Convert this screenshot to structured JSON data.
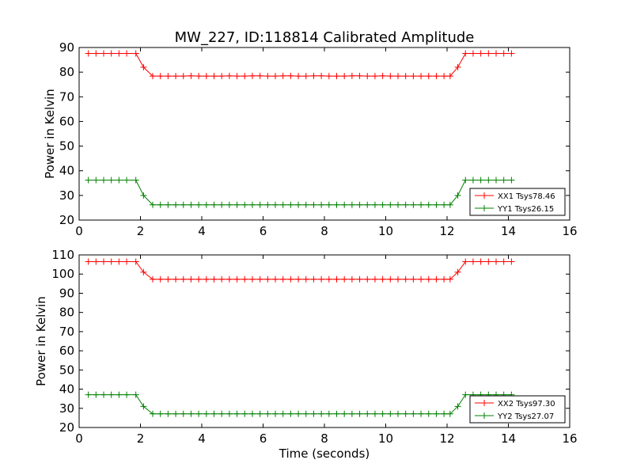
{
  "figure": {
    "title": "MW_227, ID:118814 Calibrated Amplitude"
  },
  "chart_data": [
    {
      "type": "line",
      "title": "MW_227, ID:118814 Calibrated Amplitude",
      "xlabel": "",
      "ylabel": "Power in Kelvin",
      "xlim": [
        0,
        16
      ],
      "ylim": [
        20,
        90
      ],
      "xticks": [
        "0",
        "2",
        "4",
        "6",
        "8",
        "10",
        "12",
        "14",
        "16"
      ],
      "yticks": [
        "20",
        "30",
        "40",
        "50",
        "60",
        "70",
        "80",
        "90"
      ],
      "grid": false,
      "legend_position": "lower-right",
      "marker": "+",
      "x": [
        0.3,
        0.55,
        0.8,
        1.05,
        1.3,
        1.55,
        1.85,
        2.1,
        2.4,
        2.65,
        2.9,
        3.15,
        3.4,
        3.65,
        3.9,
        4.15,
        4.4,
        4.65,
        4.9,
        5.15,
        5.4,
        5.65,
        5.9,
        6.15,
        6.4,
        6.65,
        6.9,
        7.15,
        7.4,
        7.65,
        7.9,
        8.15,
        8.4,
        8.65,
        8.9,
        9.15,
        9.4,
        9.65,
        9.9,
        10.15,
        10.4,
        10.65,
        10.9,
        11.15,
        11.4,
        11.65,
        11.9,
        12.1,
        12.35,
        12.6,
        12.85,
        13.1,
        13.35,
        13.6,
        13.85,
        14.1
      ],
      "series": [
        {
          "name": "XX1 Tsys78.46",
          "color": "#ff0000",
          "values": [
            87.6,
            87.6,
            87.6,
            87.6,
            87.6,
            87.6,
            87.6,
            82,
            78.4,
            78.4,
            78.4,
            78.4,
            78.4,
            78.5,
            78.4,
            78.4,
            78.4,
            78.4,
            78.5,
            78.4,
            78.4,
            78.5,
            78.5,
            78.4,
            78.4,
            78.5,
            78.5,
            78.4,
            78.4,
            78.5,
            78.5,
            78.4,
            78.4,
            78.4,
            78.5,
            78.5,
            78.4,
            78.4,
            78.5,
            78.4,
            78.4,
            78.4,
            78.4,
            78.4,
            78.4,
            78.4,
            78.4,
            78.4,
            82,
            87.6,
            87.6,
            87.6,
            87.6,
            87.6,
            87.6,
            87.6
          ]
        },
        {
          "name": "YY1 Tsys26.15",
          "color": "#008000",
          "values": [
            36.2,
            36.2,
            36.2,
            36.2,
            36.2,
            36.2,
            36.2,
            30,
            26.2,
            26.2,
            26.2,
            26.2,
            26.2,
            26.2,
            26.2,
            26.2,
            26.2,
            26.2,
            26.2,
            26.2,
            26.2,
            26.2,
            26.2,
            26.2,
            26.2,
            26.2,
            26.2,
            26.2,
            26.2,
            26.2,
            26.2,
            26.2,
            26.2,
            26.2,
            26.2,
            26.2,
            26.2,
            26.2,
            26.2,
            26.2,
            26.2,
            26.2,
            26.2,
            26.2,
            26.2,
            26.2,
            26.2,
            26.2,
            30,
            36.2,
            36.2,
            36.2,
            36.2,
            36.2,
            36.2,
            36.2
          ]
        }
      ]
    },
    {
      "type": "line",
      "title": "",
      "xlabel": "Time (seconds)",
      "ylabel": "Power in Kelvin",
      "xlim": [
        0,
        16
      ],
      "ylim": [
        20,
        110
      ],
      "xticks": [
        "0",
        "2",
        "4",
        "6",
        "8",
        "10",
        "12",
        "14",
        "16"
      ],
      "yticks": [
        "20",
        "30",
        "40",
        "50",
        "60",
        "70",
        "80",
        "90",
        "100",
        "110"
      ],
      "grid": false,
      "legend_position": "lower-right",
      "marker": "+",
      "x": [
        0.3,
        0.55,
        0.8,
        1.05,
        1.3,
        1.55,
        1.85,
        2.1,
        2.4,
        2.65,
        2.9,
        3.15,
        3.4,
        3.65,
        3.9,
        4.15,
        4.4,
        4.65,
        4.9,
        5.15,
        5.4,
        5.65,
        5.9,
        6.15,
        6.4,
        6.65,
        6.9,
        7.15,
        7.4,
        7.65,
        7.9,
        8.15,
        8.4,
        8.65,
        8.9,
        9.15,
        9.4,
        9.65,
        9.9,
        10.15,
        10.4,
        10.65,
        10.9,
        11.15,
        11.4,
        11.65,
        11.9,
        12.1,
        12.35,
        12.6,
        12.85,
        13.1,
        13.35,
        13.6,
        13.85,
        14.1
      ],
      "series": [
        {
          "name": "XX2 Tsys97.30",
          "color": "#ff0000",
          "values": [
            106.5,
            106.5,
            106.5,
            106.5,
            106.5,
            106.5,
            106.5,
            101,
            97.3,
            97.3,
            97.3,
            97.3,
            97.3,
            97.3,
            97.3,
            97.3,
            97.3,
            97.3,
            97.3,
            97.3,
            97.3,
            97.3,
            97.3,
            97.3,
            97.3,
            97.3,
            97.3,
            97.3,
            97.3,
            97.3,
            97.3,
            97.3,
            97.3,
            97.3,
            97.3,
            97.3,
            97.3,
            97.3,
            97.3,
            97.3,
            97.3,
            97.3,
            97.3,
            97.3,
            97.3,
            97.3,
            97.3,
            97.3,
            101,
            106.5,
            106.5,
            106.5,
            106.5,
            106.5,
            106.5,
            106.5
          ]
        },
        {
          "name": "YY2 Tsys27.07",
          "color": "#008000",
          "values": [
            37.1,
            37.1,
            37.1,
            37.1,
            37.1,
            37.1,
            37.1,
            31,
            27.1,
            27.1,
            27.1,
            27.1,
            27.1,
            27.1,
            27.1,
            27.1,
            27.1,
            27.1,
            27.1,
            27.1,
            27.1,
            27.1,
            27.1,
            27.1,
            27.1,
            27.1,
            27.1,
            27.1,
            27.1,
            27.1,
            27.1,
            27.1,
            27.1,
            27.1,
            27.1,
            27.1,
            27.1,
            27.1,
            27.1,
            27.1,
            27.1,
            27.1,
            27.1,
            27.1,
            27.1,
            27.1,
            27.1,
            27.1,
            31,
            37.1,
            37.1,
            37.1,
            37.1,
            37.1,
            37.1,
            37.1
          ]
        }
      ]
    }
  ]
}
